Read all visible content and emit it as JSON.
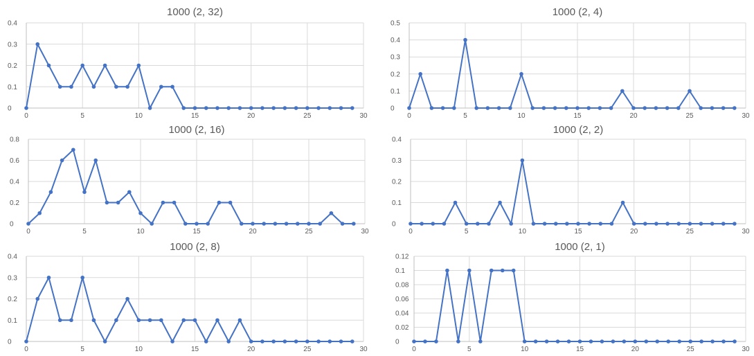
{
  "chart_data": [
    {
      "type": "line",
      "title": "1000 (2, 32)",
      "x": [
        0,
        1,
        2,
        3,
        4,
        5,
        6,
        7,
        8,
        9,
        10,
        11,
        12,
        13,
        14,
        15,
        16,
        17,
        18,
        19,
        20,
        21,
        22,
        23,
        24,
        25,
        26,
        27,
        28,
        29
      ],
      "values": [
        0,
        0.3,
        0.2,
        0.1,
        0.1,
        0.2,
        0.1,
        0.2,
        0.1,
        0.1,
        0.2,
        0,
        0.1,
        0.1,
        0,
        0,
        0,
        0,
        0,
        0,
        0,
        0,
        0,
        0,
        0,
        0,
        0,
        0,
        0,
        0
      ],
      "xlim": [
        0,
        30
      ],
      "ylim": [
        0,
        0.4
      ],
      "xticks": [
        0,
        5,
        10,
        15,
        20,
        25,
        30
      ],
      "xtick_labels": [
        "0",
        "5",
        "10",
        "15",
        "20",
        "25",
        "30"
      ],
      "yticks": [
        0,
        0.1,
        0.2,
        0.3,
        0.4
      ],
      "ytick_labels": [
        "0",
        "0.1",
        "0.2",
        "0.3",
        "0.4"
      ],
      "grid": true,
      "color": "#4472c4"
    },
    {
      "type": "line",
      "title": "1000 (2, 4)",
      "x": [
        0,
        1,
        2,
        3,
        4,
        5,
        6,
        7,
        8,
        9,
        10,
        11,
        12,
        13,
        14,
        15,
        16,
        17,
        18,
        19,
        20,
        21,
        22,
        23,
        24,
        25,
        26,
        27,
        28,
        29
      ],
      "values": [
        0,
        0.2,
        0,
        0,
        0,
        0.4,
        0,
        0,
        0,
        0,
        0.2,
        0,
        0,
        0,
        0,
        0,
        0,
        0,
        0,
        0.1,
        0,
        0,
        0,
        0,
        0,
        0.1,
        0,
        0,
        0,
        0
      ],
      "xlim": [
        0,
        30
      ],
      "ylim": [
        0,
        0.5
      ],
      "xticks": [
        0,
        5,
        10,
        15,
        20,
        25,
        30
      ],
      "xtick_labels": [
        "0",
        "5",
        "10",
        "15",
        "20",
        "25",
        "30"
      ],
      "yticks": [
        0,
        0.1,
        0.2,
        0.3,
        0.4,
        0.5
      ],
      "ytick_labels": [
        "0",
        "0.1",
        "0.2",
        "0.3",
        "0.4",
        "0.5"
      ],
      "grid": true,
      "color": "#4472c4"
    },
    {
      "type": "line",
      "title": "1000 (2, 16)",
      "x": [
        0,
        1,
        2,
        3,
        4,
        5,
        6,
        7,
        8,
        9,
        10,
        11,
        12,
        13,
        14,
        15,
        16,
        17,
        18,
        19,
        20,
        21,
        22,
        23,
        24,
        25,
        26,
        27,
        28,
        29
      ],
      "values": [
        0,
        0.1,
        0.3,
        0.6,
        0.7,
        0.3,
        0.6,
        0.2,
        0.2,
        0.3,
        0.1,
        0,
        0.2,
        0.2,
        0,
        0,
        0,
        0.2,
        0.2,
        0,
        0,
        0,
        0,
        0,
        0,
        0,
        0,
        0.1,
        0,
        0
      ],
      "xlim": [
        0,
        30
      ],
      "ylim": [
        0,
        0.8
      ],
      "xticks": [
        0,
        5,
        10,
        15,
        20,
        25,
        30
      ],
      "xtick_labels": [
        "0",
        "5",
        "10",
        "15",
        "20",
        "25",
        "30"
      ],
      "yticks": [
        0,
        0.2,
        0.4,
        0.6,
        0.8
      ],
      "ytick_labels": [
        "0",
        "0.2",
        "0.4",
        "0.6",
        "0.8"
      ],
      "grid": true,
      "color": "#4472c4"
    },
    {
      "type": "line",
      "title": "1000 (2, 2)",
      "x": [
        0,
        1,
        2,
        3,
        4,
        5,
        6,
        7,
        8,
        9,
        10,
        11,
        12,
        13,
        14,
        15,
        16,
        17,
        18,
        19,
        20,
        21,
        22,
        23,
        24,
        25,
        26,
        27,
        28,
        29
      ],
      "values": [
        0,
        0,
        0,
        0,
        0.1,
        0,
        0,
        0,
        0.1,
        0,
        0.3,
        0,
        0,
        0,
        0,
        0,
        0,
        0,
        0,
        0.1,
        0,
        0,
        0,
        0,
        0,
        0,
        0,
        0,
        0,
        0
      ],
      "xlim": [
        0,
        30
      ],
      "ylim": [
        0,
        0.4
      ],
      "xticks": [
        0,
        5,
        10,
        15,
        20,
        25,
        30
      ],
      "xtick_labels": [
        "0",
        "5",
        "10",
        "15",
        "20",
        "25",
        "30"
      ],
      "yticks": [
        0,
        0.1,
        0.2,
        0.3,
        0.4
      ],
      "ytick_labels": [
        "0",
        "0.1",
        "0.2",
        "0.3",
        "0.4"
      ],
      "grid": true,
      "color": "#4472c4"
    },
    {
      "type": "line",
      "title": "1000 (2, 8)",
      "x": [
        0,
        1,
        2,
        3,
        4,
        5,
        6,
        7,
        8,
        9,
        10,
        11,
        12,
        13,
        14,
        15,
        16,
        17,
        18,
        19,
        20,
        21,
        22,
        23,
        24,
        25,
        26,
        27,
        28,
        29
      ],
      "values": [
        0,
        0.2,
        0.3,
        0.1,
        0.1,
        0.3,
        0.1,
        0,
        0.1,
        0.2,
        0.1,
        0.1,
        0.1,
        0,
        0.1,
        0.1,
        0,
        0.1,
        0,
        0.1,
        0,
        0,
        0,
        0,
        0,
        0,
        0,
        0,
        0,
        0
      ],
      "xlim": [
        0,
        30
      ],
      "ylim": [
        0,
        0.4
      ],
      "xticks": [
        0,
        5,
        10,
        15,
        20,
        25,
        30
      ],
      "xtick_labels": [
        "0",
        "5",
        "10",
        "15",
        "20",
        "25",
        "30"
      ],
      "yticks": [
        0,
        0.1,
        0.2,
        0.3,
        0.4
      ],
      "ytick_labels": [
        "0",
        "0.1",
        "0.2",
        "0.3",
        "0.4"
      ],
      "grid": true,
      "color": "#4472c4"
    },
    {
      "type": "line",
      "title": "1000 (2, 1)",
      "x": [
        0,
        1,
        2,
        3,
        4,
        5,
        6,
        7,
        8,
        9,
        10,
        11,
        12,
        13,
        14,
        15,
        16,
        17,
        18,
        19,
        20,
        21,
        22,
        23,
        24,
        25,
        26,
        27,
        28,
        29
      ],
      "values": [
        0,
        0,
        0,
        0.1,
        0,
        0.1,
        0,
        0.1,
        0.1,
        0.1,
        0,
        0,
        0,
        0,
        0,
        0,
        0,
        0,
        0,
        0,
        0,
        0,
        0,
        0,
        0,
        0,
        0,
        0,
        0,
        0
      ],
      "xlim": [
        0,
        30
      ],
      "ylim": [
        0,
        0.12
      ],
      "xticks": [
        0,
        5,
        10,
        15,
        20,
        25,
        30
      ],
      "xtick_labels": [
        "0",
        "5",
        "10",
        "15",
        "20",
        "25",
        "30"
      ],
      "yticks": [
        0,
        0.02,
        0.04,
        0.06,
        0.08,
        0.1,
        0.12
      ],
      "ytick_labels": [
        "0",
        "0.02",
        "0.04",
        "0.06",
        "0.08",
        "0.1",
        "0.12"
      ],
      "grid": true,
      "color": "#4472c4"
    }
  ]
}
